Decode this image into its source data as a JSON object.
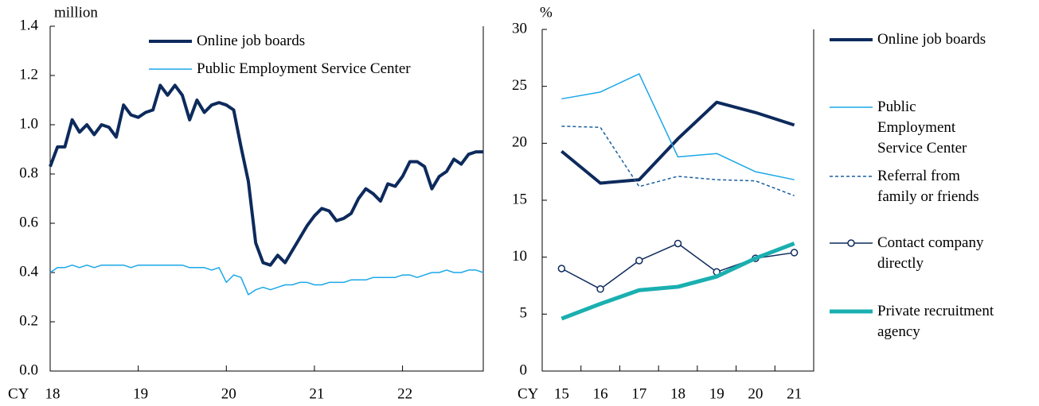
{
  "chart_data": [
    {
      "type": "line",
      "unit_label": "million",
      "xlabel": "CY",
      "categories": [
        "18",
        null,
        null,
        null,
        null,
        null,
        null,
        null,
        null,
        null,
        null,
        null,
        "19",
        null,
        null,
        null,
        null,
        null,
        null,
        null,
        null,
        null,
        null,
        null,
        "20",
        null,
        null,
        null,
        null,
        null,
        null,
        null,
        null,
        null,
        null,
        null,
        "21",
        null,
        null,
        null,
        null,
        null,
        null,
        null,
        null,
        null,
        null,
        null,
        "22",
        null,
        null,
        null,
        null,
        null,
        null,
        null,
        null,
        null,
        null,
        null
      ],
      "ylim": [
        0,
        1.4
      ],
      "yticks": [
        {
          "value": 0,
          "label": "0.0"
        },
        0.2,
        0.4,
        0.6,
        0.8,
        {
          "value": 1,
          "label": "1.0"
        },
        1.2,
        1.4
      ],
      "legend": "upper center",
      "series": [
        {
          "name": "Online job boards",
          "color": "#0d2a5c",
          "width": 4,
          "values": [
            0.83,
            0.91,
            0.91,
            1.02,
            0.97,
            1.0,
            0.96,
            1.0,
            0.99,
            0.95,
            1.08,
            1.04,
            1.03,
            1.05,
            1.06,
            1.16,
            1.12,
            1.16,
            1.12,
            1.02,
            1.1,
            1.05,
            1.08,
            1.09,
            1.08,
            1.06,
            0.91,
            0.77,
            0.52,
            0.44,
            0.43,
            0.47,
            0.44,
            0.49,
            0.54,
            0.59,
            0.63,
            0.66,
            0.65,
            0.61,
            0.62,
            0.64,
            0.7,
            0.74,
            0.72,
            0.69,
            0.76,
            0.75,
            0.79,
            0.85,
            0.85,
            0.83,
            0.74,
            0.79,
            0.81,
            0.86,
            0.84,
            0.88,
            0.89,
            0.89
          ]
        },
        {
          "name": "Public Employment Service Center",
          "color": "#1aa7e8",
          "width": 1.5,
          "values": [
            0.4,
            0.42,
            0.42,
            0.43,
            0.42,
            0.43,
            0.42,
            0.43,
            0.43,
            0.43,
            0.43,
            0.42,
            0.43,
            0.43,
            0.43,
            0.43,
            0.43,
            0.43,
            0.43,
            0.42,
            0.42,
            0.42,
            0.41,
            0.42,
            0.36,
            0.39,
            0.38,
            0.31,
            0.33,
            0.34,
            0.33,
            0.34,
            0.35,
            0.35,
            0.36,
            0.36,
            0.35,
            0.35,
            0.36,
            0.36,
            0.36,
            0.37,
            0.37,
            0.37,
            0.38,
            0.38,
            0.38,
            0.38,
            0.39,
            0.39,
            0.38,
            0.39,
            0.4,
            0.4,
            0.41,
            0.4,
            0.4,
            0.41,
            0.41,
            0.4
          ]
        }
      ]
    },
    {
      "type": "line",
      "unit_label": "%",
      "xlabel": "CY",
      "categories": [
        "15",
        "16",
        "17",
        "18",
        "19",
        "20",
        "21"
      ],
      "ylim": [
        0,
        30
      ],
      "yticks": [
        0,
        5,
        10,
        15,
        20,
        25,
        30
      ],
      "legend": "right",
      "series": [
        {
          "name": "Online job boards",
          "color": "#0d2a5c",
          "width": 4,
          "values": [
            19.3,
            16.5,
            16.8,
            20.4,
            23.6,
            22.7,
            21.6
          ]
        },
        {
          "name": "Public Employment Service Center",
          "color": "#1aa7e8",
          "width": 1.5,
          "values": [
            23.9,
            24.5,
            26.1,
            18.8,
            19.1,
            17.5,
            16.8
          ]
        },
        {
          "name": "Referral from family or friends",
          "color": "#1b5f9e",
          "width": 1.5,
          "dash": true,
          "values": [
            21.5,
            21.4,
            16.2,
            17.1,
            16.8,
            16.7,
            15.4
          ]
        },
        {
          "name": "Contact company directly",
          "color": "#0d2a5c",
          "width": 1.5,
          "marker": "circle",
          "values": [
            9.0,
            7.2,
            9.7,
            11.2,
            8.7,
            9.9,
            10.4
          ]
        },
        {
          "name": "Private recruitment agency",
          "color": "#1aafb0",
          "width": 5,
          "values": [
            4.6,
            5.9,
            7.1,
            7.4,
            8.3,
            9.9,
            11.2
          ]
        }
      ]
    }
  ]
}
